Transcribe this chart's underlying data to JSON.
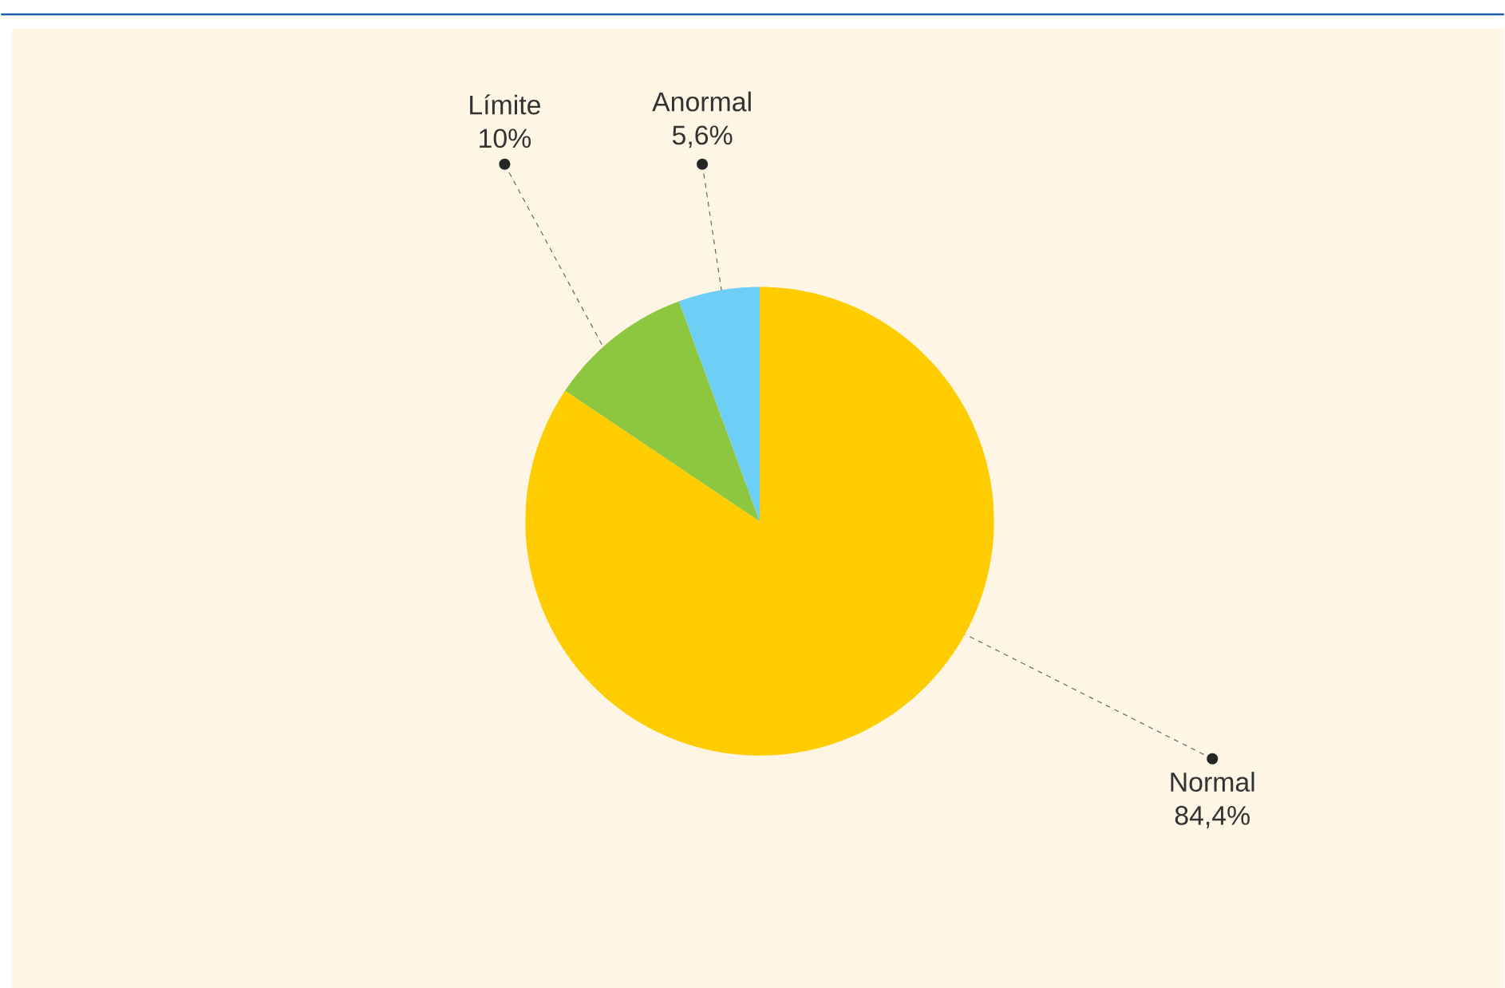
{
  "chart_data": {
    "type": "pie",
    "categories": [
      "Normal",
      "Límite",
      "Anormal"
    ],
    "values": [
      84.4,
      10,
      5.6
    ],
    "value_labels": [
      "84,4%",
      "10%",
      "5,6%"
    ],
    "colors": [
      "#ffcc00",
      "#8dc63f",
      "#6dcff6"
    ]
  }
}
